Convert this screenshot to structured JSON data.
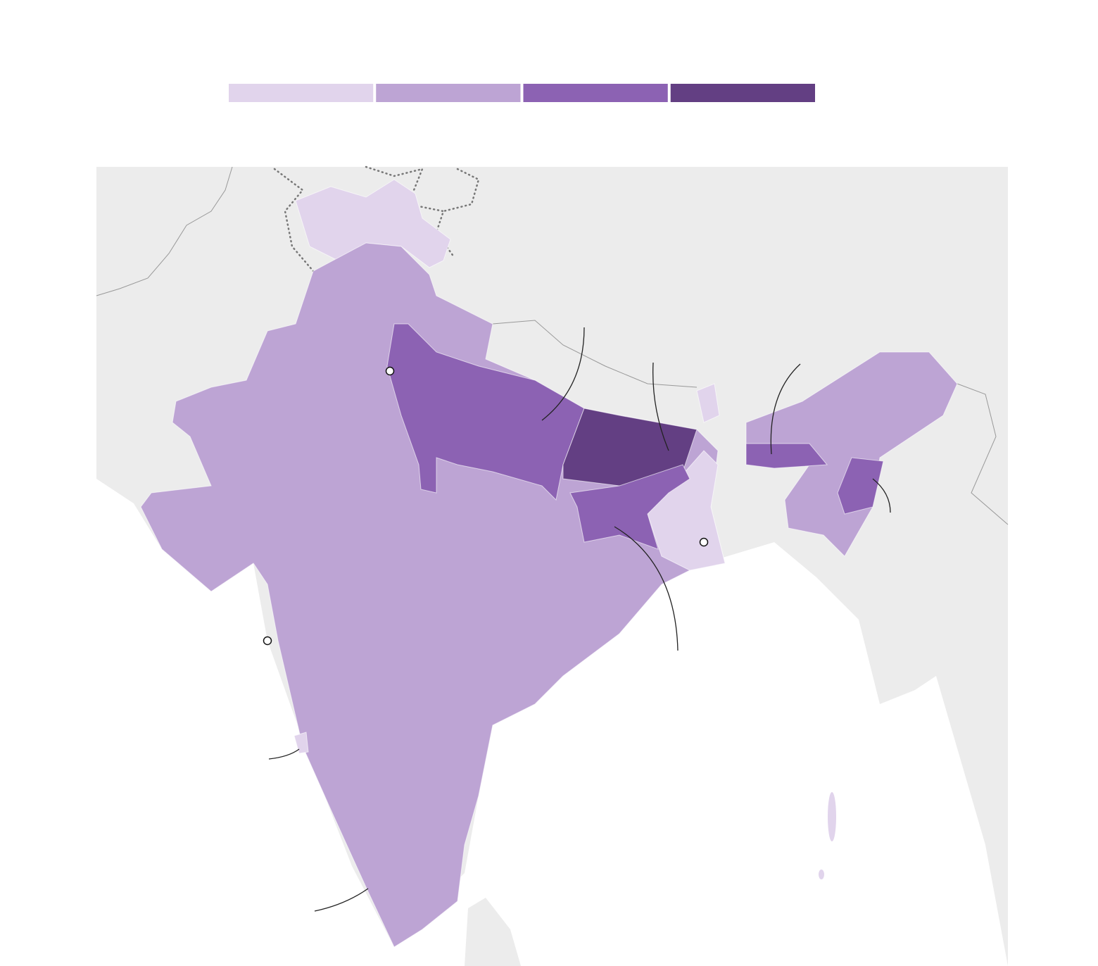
{
  "legend": {
    "colors": [
      "#e1d4ec",
      "#bda4d4",
      "#8c62b3",
      "#633f83"
    ]
  }
}
